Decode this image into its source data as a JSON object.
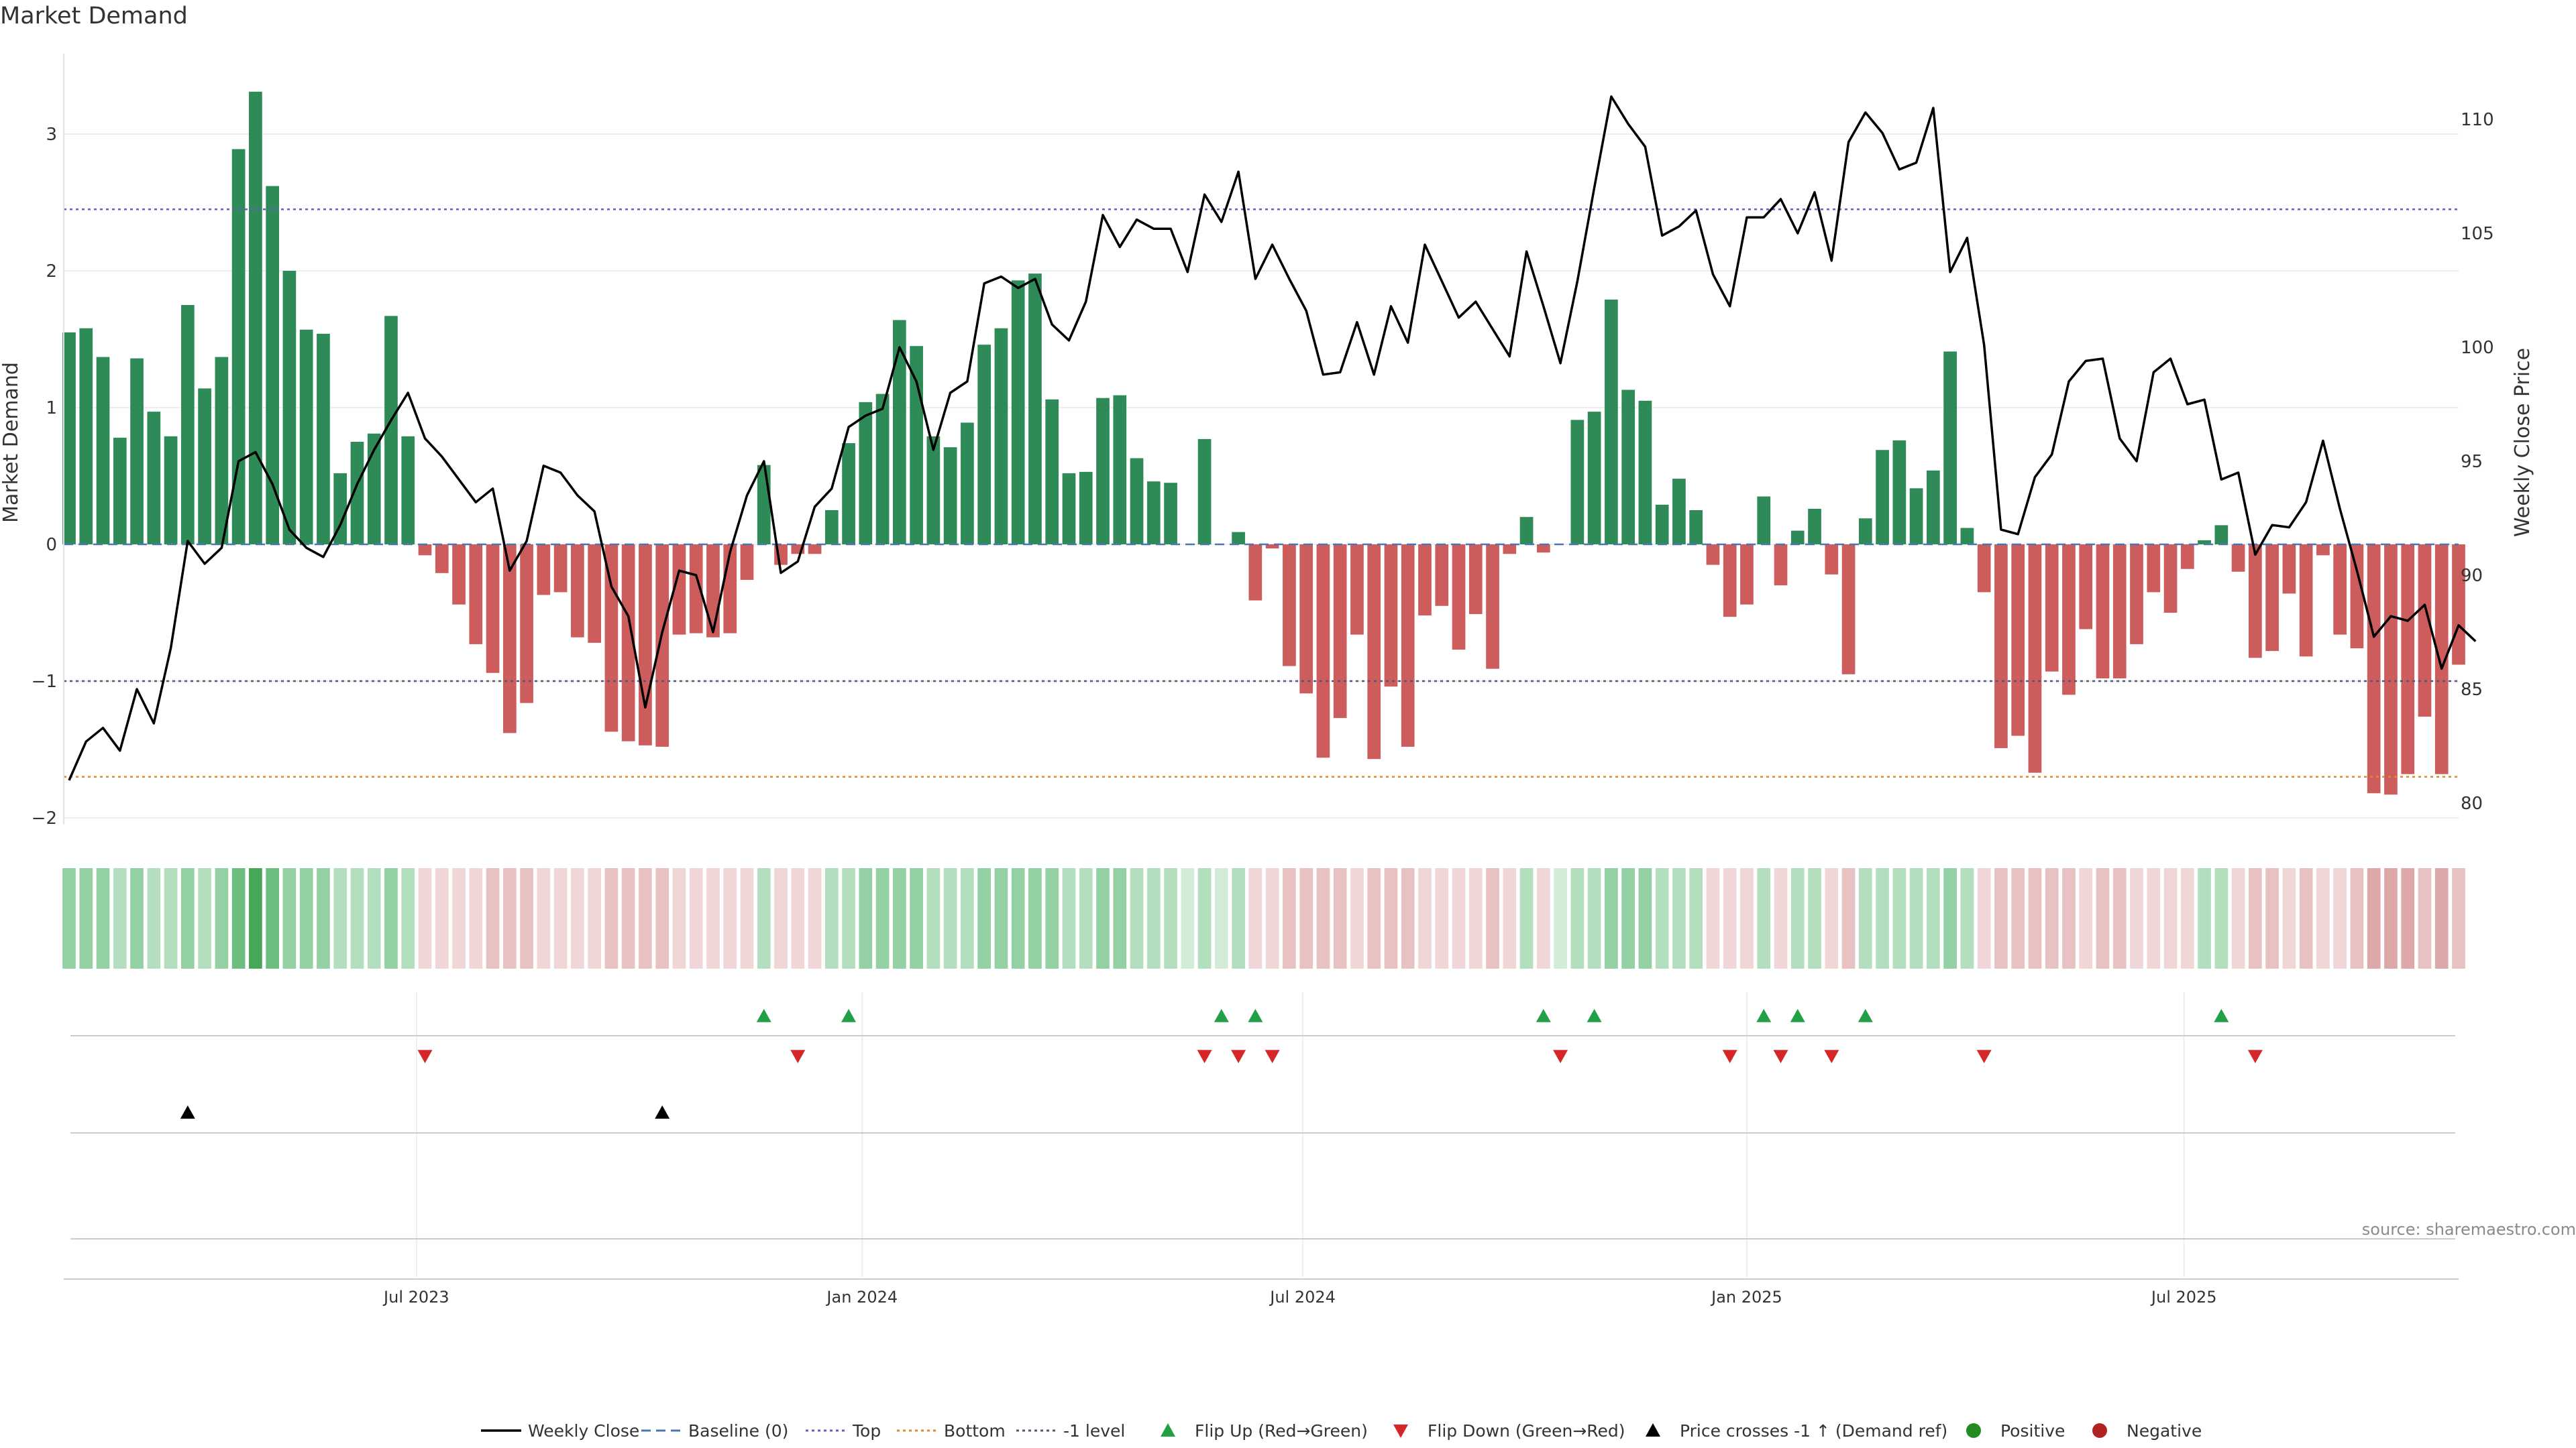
{
  "chart_data": {
    "type": "bar+line",
    "title": "Market Demand",
    "source": "source: sharemaestro.com",
    "y_left_label": "Market Demand",
    "y_right_label": "Weekly Close Price",
    "y_left_lim": [
      -2.0,
      3.4
    ],
    "y_right_lim": [
      79.5,
      113.0
    ],
    "y_left_ticks": [
      -2,
      -1,
      0,
      1,
      2,
      3
    ],
    "y_right_ticks": [
      80,
      85,
      90,
      95,
      100,
      105,
      110
    ],
    "reference_lines": {
      "top": 2.45,
      "bottom": -1.7,
      "minus_one": -1.0,
      "baseline": 0
    },
    "x_ticks": [
      {
        "index": 20.5,
        "label": "Jul 2023"
      },
      {
        "index": 46.8,
        "label": "Jan 2024"
      },
      {
        "index": 72.8,
        "label": "Jul 2024"
      },
      {
        "index": 99.0,
        "label": "Jan 2025"
      },
      {
        "index": 124.8,
        "label": "Jul 2025"
      }
    ],
    "demand": [
      1.55,
      1.58,
      1.37,
      0.78,
      1.36,
      0.97,
      0.79,
      1.75,
      1.14,
      1.37,
      2.89,
      3.31,
      2.62,
      2.0,
      1.57,
      1.54,
      0.52,
      0.75,
      0.81,
      1.67,
      0.79,
      -0.08,
      -0.21,
      -0.44,
      -0.73,
      -0.94,
      -1.38,
      -1.16,
      -0.37,
      -0.35,
      -0.68,
      -0.72,
      -1.37,
      -1.44,
      -1.47,
      -1.48,
      -0.66,
      -0.65,
      -0.68,
      -0.65,
      -0.26,
      0.58,
      -0.15,
      -0.07,
      -0.07,
      0.25,
      0.74,
      1.04,
      1.1,
      1.64,
      1.45,
      0.79,
      0.71,
      0.89,
      1.46,
      1.58,
      1.93,
      1.98,
      1.06,
      0.52,
      0.53,
      1.07,
      1.09,
      0.63,
      0.46,
      0.45,
      0.0,
      0.77,
      0.0,
      0.09,
      -0.41,
      -0.03,
      -0.89,
      -1.09,
      -1.56,
      -1.27,
      -0.66,
      -1.57,
      -1.04,
      -1.48,
      -0.52,
      -0.45,
      -0.77,
      -0.51,
      -0.91,
      -0.07,
      0.2,
      -0.06,
      0.0,
      0.91,
      0.97,
      1.79,
      1.13,
      1.05,
      0.29,
      0.48,
      0.25,
      -0.15,
      -0.53,
      -0.44,
      0.35,
      -0.3,
      0.1,
      0.26,
      -0.22,
      -0.95,
      0.19,
      0.69,
      0.76,
      0.41,
      0.54,
      1.41,
      0.12,
      -0.35,
      -1.49,
      -1.4,
      -1.67,
      -0.93,
      -1.1,
      -0.62,
      -0.98,
      -0.98,
      -0.73,
      -0.35,
      -0.5,
      -0.18,
      0.03,
      0.14,
      -0.2,
      -0.83,
      -0.78,
      -0.36,
      -0.82,
      -0.08,
      -0.66,
      -0.76,
      -1.82,
      -1.83,
      -1.68,
      -1.26,
      -1.68,
      -0.88
    ],
    "close": [
      81.0,
      82.7,
      83.3,
      82.3,
      85.0,
      83.5,
      86.8,
      91.5,
      90.5,
      91.2,
      95.0,
      95.4,
      94.0,
      92.0,
      91.2,
      90.8,
      92.2,
      94.0,
      95.5,
      96.8,
      98.0,
      96.0,
      95.2,
      94.2,
      93.2,
      93.8,
      90.2,
      91.5,
      94.8,
      94.5,
      93.5,
      92.8,
      89.5,
      88.2,
      84.2,
      87.5,
      90.2,
      90.0,
      87.5,
      91.0,
      93.5,
      95.0,
      90.1,
      90.6,
      93.0,
      93.8,
      96.5,
      97.0,
      97.3,
      100.0,
      98.5,
      95.5,
      98.0,
      98.5,
      102.8,
      103.1,
      102.6,
      103.0,
      101.0,
      100.3,
      102.0,
      105.8,
      104.4,
      105.6,
      105.2,
      105.2,
      103.3,
      106.7,
      105.5,
      107.7,
      103.0,
      104.5,
      103.0,
      101.6,
      98.8,
      98.9,
      101.1,
      98.8,
      101.8,
      100.2,
      104.5,
      102.9,
      101.3,
      102.0,
      100.8,
      99.6,
      104.2,
      101.8,
      99.3,
      102.9,
      107.0,
      111.0,
      109.8,
      108.8,
      104.9,
      105.3,
      106.0,
      103.2,
      101.8,
      105.7,
      105.7,
      106.5,
      105.0,
      106.8,
      103.8,
      109.0,
      110.3,
      109.4,
      107.8,
      108.1,
      110.5,
      103.3,
      104.8,
      100.1,
      92.0,
      91.8,
      94.3,
      95.3,
      98.5,
      99.4,
      99.5,
      96.0,
      95.0,
      98.9,
      99.5,
      97.5,
      97.7,
      94.2,
      94.5,
      90.9,
      92.2,
      92.1,
      93.2,
      95.9,
      92.9,
      90.2,
      87.3,
      88.2,
      88.0,
      88.7,
      85.9,
      87.8,
      87.1
    ],
    "shade_levels": [
      2,
      2,
      2,
      1,
      2,
      1,
      1,
      2,
      1,
      2,
      3,
      4,
      3,
      2,
      2,
      2,
      1,
      1,
      1,
      2,
      1,
      -1,
      -1,
      -1,
      -1,
      -2,
      -2,
      -2,
      -1,
      -1,
      -1,
      -1,
      -2,
      -2,
      -2,
      -2,
      -1,
      -1,
      -1,
      -1,
      -1,
      1,
      -1,
      -1,
      -1,
      1,
      1,
      2,
      2,
      2,
      2,
      1,
      1,
      1,
      2,
      2,
      2,
      2,
      2,
      1,
      1,
      2,
      2,
      1,
      1,
      1,
      0,
      1,
      0,
      1,
      -1,
      -1,
      -2,
      -2,
      -2,
      -2,
      -1,
      -2,
      -2,
      -2,
      -1,
      -1,
      -1,
      -1,
      -2,
      -1,
      1,
      -1,
      0,
      1,
      1,
      2,
      2,
      2,
      1,
      1,
      1,
      -1,
      -1,
      -1,
      1,
      -1,
      1,
      1,
      -1,
      -2,
      1,
      1,
      1,
      1,
      1,
      2,
      1,
      -1,
      -2,
      -2,
      -2,
      -2,
      -2,
      -1,
      -2,
      -2,
      -1,
      -1,
      -1,
      -1,
      1,
      1,
      -1,
      -2,
      -2,
      -1,
      -2,
      -1,
      -1,
      -2,
      -3,
      -3,
      -3,
      -2,
      -3,
      -2
    ],
    "flip_up_idx": [
      41,
      46,
      68,
      70,
      87,
      90,
      100,
      102,
      106,
      127
    ],
    "flip_down_idx": [
      21,
      43,
      67,
      69,
      71,
      88,
      98,
      101,
      104,
      113,
      129
    ],
    "price_cross_idx": [
      7,
      35
    ],
    "legend": [
      "Weekly Close",
      "Baseline (0)",
      "Top",
      "Bottom",
      "-1 level",
      "Flip Up (Red→Green)",
      "Flip Down (Green→Red)",
      "Price crosses -1 ↑ (Demand ref)",
      "Positive",
      "Negative"
    ],
    "colors": {
      "positive": "#2e8b57",
      "negative": "#cd5c5c",
      "line": "#000000",
      "top": "#6a5acd",
      "bottom": "#e08a2c",
      "minus_one": "#555577",
      "baseline": "#4a77b4",
      "flip_up": "#22a046",
      "flip_down": "#d62728",
      "pos_dot": "#228b22",
      "neg_dot": "#b22222"
    }
  }
}
